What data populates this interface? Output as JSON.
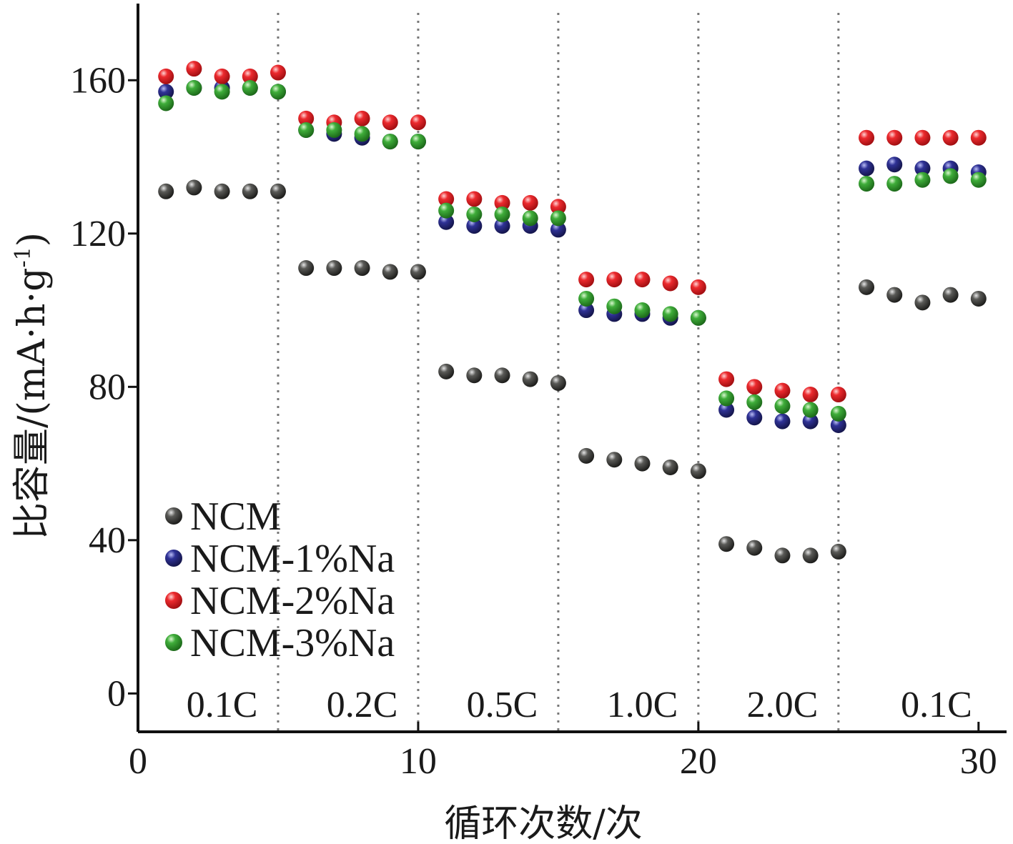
{
  "chart_data": {
    "type": "scatter",
    "xlabel": "循环次数/次",
    "ylabel_main": "比容量/(mA·h·g",
    "ylabel_sup": "-1",
    "ylabel_close": ")",
    "xlim": [
      0,
      31
    ],
    "ylim": [
      -10,
      180
    ],
    "xticks": [
      0,
      10,
      20,
      30
    ],
    "yticks": [
      0,
      40,
      80,
      120,
      160
    ],
    "grid": false,
    "legend_position": "bottom-left",
    "dividers": [
      5,
      10,
      15,
      20,
      25
    ],
    "rate_labels": [
      {
        "text": "0.1C",
        "x": 3
      },
      {
        "text": "0.2C",
        "x": 8
      },
      {
        "text": "0.5C",
        "x": 13
      },
      {
        "text": "1.0C",
        "x": 18
      },
      {
        "text": "2.0C",
        "x": 23
      },
      {
        "text": "0.1C",
        "x": 28.5
      }
    ],
    "x": [
      1,
      2,
      3,
      4,
      5,
      6,
      7,
      8,
      9,
      10,
      11,
      12,
      13,
      14,
      15,
      16,
      17,
      18,
      19,
      20,
      21,
      22,
      23,
      24,
      25,
      26,
      27,
      28,
      29,
      30
    ],
    "series": [
      {
        "name": "NCM",
        "color": "#4a4a47",
        "values": [
          131,
          132,
          131,
          131,
          131,
          111,
          111,
          111,
          110,
          110,
          84,
          83,
          83,
          82,
          81,
          62,
          61,
          60,
          59,
          58,
          39,
          38,
          36,
          36,
          37,
          106,
          104,
          102,
          104,
          103
        ]
      },
      {
        "name": "NCM-1%Na",
        "color": "#2c2e8c",
        "values": [
          157,
          158,
          158,
          158,
          157,
          147,
          146,
          145,
          144,
          144,
          123,
          122,
          122,
          122,
          121,
          100,
          99,
          99,
          98,
          98,
          74,
          72,
          71,
          71,
          70,
          137,
          138,
          137,
          137,
          136
        ]
      },
      {
        "name": "NCM-2%Na",
        "color": "#e8262a",
        "values": [
          161,
          163,
          161,
          161,
          162,
          150,
          149,
          150,
          149,
          149,
          129,
          129,
          128,
          128,
          127,
          108,
          108,
          108,
          107,
          106,
          82,
          80,
          79,
          78,
          78,
          145,
          145,
          145,
          145,
          145
        ]
      },
      {
        "name": "NCM-3%Na",
        "color": "#3aa637",
        "values": [
          154,
          158,
          157,
          158,
          157,
          147,
          147,
          146,
          144,
          144,
          126,
          125,
          125,
          124,
          124,
          103,
          101,
          100,
          99,
          98,
          77,
          76,
          75,
          74,
          73,
          133,
          133,
          134,
          135,
          134
        ]
      }
    ]
  }
}
